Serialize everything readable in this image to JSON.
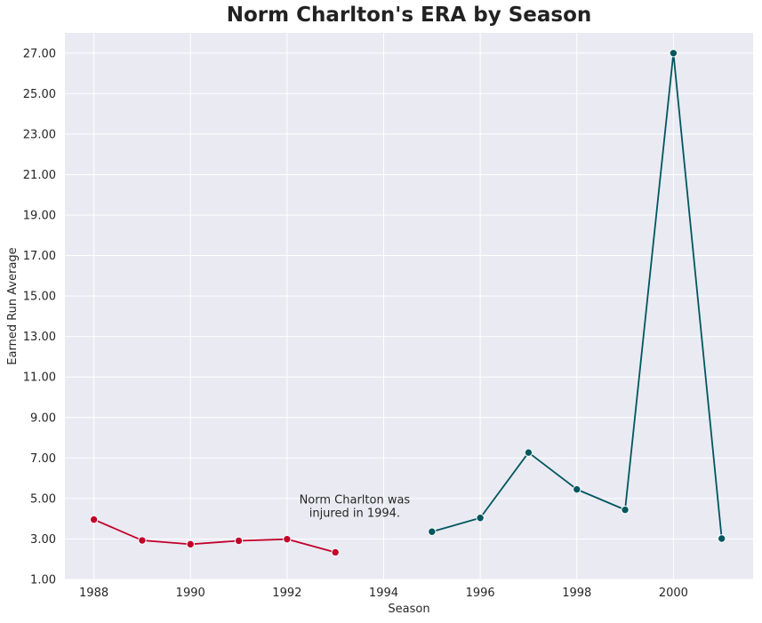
{
  "chart_data": {
    "type": "line",
    "title": "Norm Charlton's ERA by Season",
    "xlabel": "Season",
    "ylabel": "Earned Run Average",
    "xlim": [
      1987.4,
      2001.65
    ],
    "ylim": [
      1.0,
      28.0
    ],
    "xticks": [
      1988,
      1990,
      1992,
      1994,
      1996,
      1998,
      2000
    ],
    "yticks": [
      1.0,
      3.0,
      5.0,
      7.0,
      9.0,
      11.0,
      13.0,
      15.0,
      17.0,
      19.0,
      21.0,
      23.0,
      25.0,
      27.0
    ],
    "ytick_labels": [
      "1.00",
      "3.00",
      "5.00",
      "7.00",
      "9.00",
      "11.00",
      "13.00",
      "15.00",
      "17.00",
      "19.00",
      "21.00",
      "23.00",
      "25.00",
      "27.00"
    ],
    "series": [
      {
        "name": "1988-1993",
        "color": "#c0002a",
        "x": [
          1988,
          1989,
          1990,
          1991,
          1992,
          1993
        ],
        "values": [
          3.96,
          2.93,
          2.74,
          2.91,
          2.99,
          2.34
        ]
      },
      {
        "name": "1995-2001",
        "color": "#00575e",
        "x": [
          1995,
          1996,
          1997,
          1998,
          1999,
          2000,
          2001
        ],
        "values": [
          3.36,
          4.04,
          7.27,
          5.45,
          4.44,
          27.0,
          3.02
        ]
      }
    ],
    "annotation": {
      "lines": [
        "Norm Charlton was",
        "injured in 1994."
      ],
      "x": 1993.4,
      "y": 4.4
    },
    "grid": true,
    "background": "#eaeaf2",
    "grid_color": "#ffffff"
  }
}
